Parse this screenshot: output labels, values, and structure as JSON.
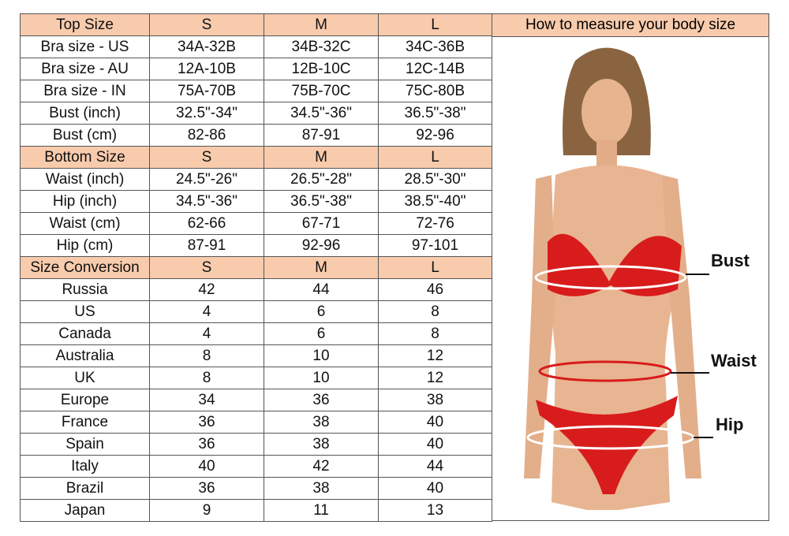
{
  "table": {
    "rows": [
      {
        "header": true,
        "cells": [
          "Top Size",
          "S",
          "M",
          "L"
        ]
      },
      {
        "cells": [
          "Bra size - US",
          "34A-32B",
          "34B-32C",
          "34C-36B"
        ]
      },
      {
        "cells": [
          "Bra size - AU",
          "12A-10B",
          "12B-10C",
          "12C-14B"
        ]
      },
      {
        "cells": [
          "Bra size - IN",
          "75A-70B",
          "75B-70C",
          "75C-80B"
        ]
      },
      {
        "cells": [
          "Bust (inch)",
          "32.5\"-34\"",
          "34.5\"-36\"",
          "36.5\"-38\""
        ]
      },
      {
        "cells": [
          "Bust (cm)",
          "82-86",
          "87-91",
          "92-96"
        ]
      },
      {
        "header": true,
        "cells": [
          "Bottom Size",
          "S",
          "M",
          "L"
        ]
      },
      {
        "cells": [
          "Waist (inch)",
          "24.5\"-26\"",
          "26.5\"-28\"",
          "28.5\"-30\""
        ]
      },
      {
        "cells": [
          "Hip (inch)",
          "34.5\"-36\"",
          "36.5\"-38\"",
          "38.5\"-40\""
        ]
      },
      {
        "cells": [
          "Waist (cm)",
          "62-66",
          "67-71",
          "72-76"
        ]
      },
      {
        "cells": [
          "Hip (cm)",
          "87-91",
          "92-96",
          "97-101"
        ]
      },
      {
        "header": true,
        "cells": [
          "Size Conversion",
          "S",
          "M",
          "L"
        ]
      },
      {
        "cells": [
          "Russia",
          "42",
          "44",
          "46"
        ]
      },
      {
        "cells": [
          "US",
          "4",
          "6",
          "8"
        ]
      },
      {
        "cells": [
          "Canada",
          "4",
          "6",
          "8"
        ]
      },
      {
        "cells": [
          "Australia",
          "8",
          "10",
          "12"
        ]
      },
      {
        "cells": [
          "UK",
          "8",
          "10",
          "12"
        ]
      },
      {
        "cells": [
          "Europe",
          "34",
          "36",
          "38"
        ]
      },
      {
        "cells": [
          "France",
          "36",
          "38",
          "40"
        ]
      },
      {
        "cells": [
          "Spain",
          "36",
          "38",
          "40"
        ]
      },
      {
        "cells": [
          "Italy",
          "40",
          "42",
          "44"
        ]
      },
      {
        "cells": [
          "Brazil",
          "36",
          "38",
          "40"
        ]
      },
      {
        "cells": [
          "Japan",
          "9",
          "11",
          "13"
        ]
      }
    ]
  },
  "panel": {
    "title": "How to measure your body size",
    "labels": {
      "bust": "Bust",
      "waist": "Waist",
      "hip": "Hip"
    }
  },
  "colors": {
    "header": "#f8cbad",
    "bikini": "#d81c1c"
  }
}
